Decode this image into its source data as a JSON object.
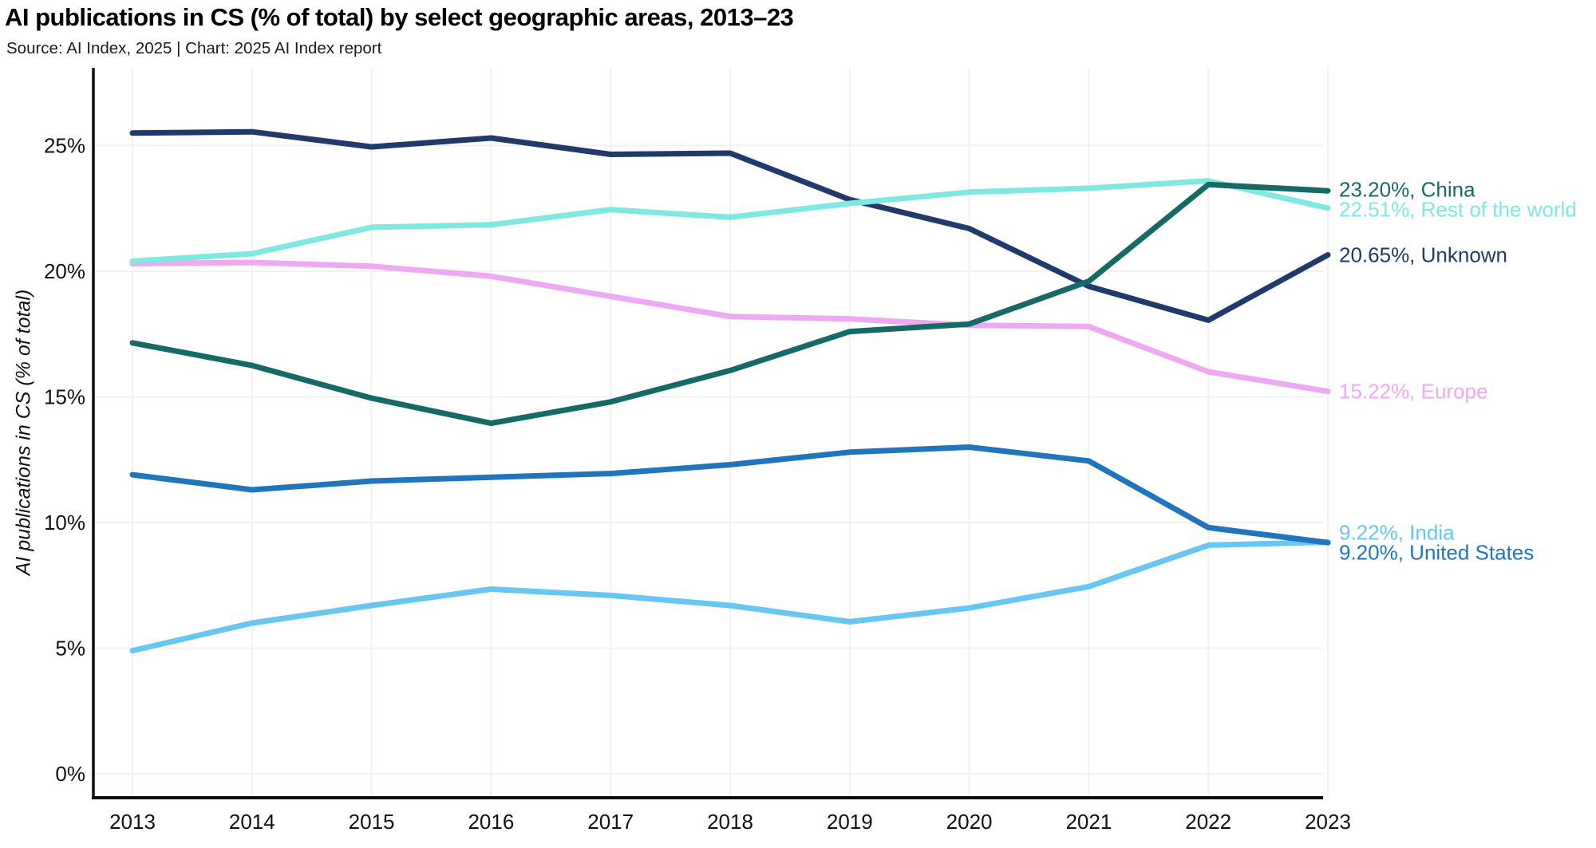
{
  "title": "AI publications in CS (% of total) by select geographic areas, 2013–23",
  "source_line": "Source: AI Index, 2025 | Chart: 2025 AI Index report",
  "chart_data": {
    "type": "line",
    "title": "AI publications in CS (% of total) by select geographic areas, 2013–23",
    "xlabel": "",
    "ylabel": "AI publications in CS (% of total)",
    "x": [
      2013,
      2014,
      2015,
      2016,
      2017,
      2018,
      2019,
      2020,
      2021,
      2022,
      2023
    ],
    "ylim": [
      0,
      27.5
    ],
    "yticks": [
      0,
      5,
      10,
      15,
      20,
      25
    ],
    "ytick_labels": [
      "0%",
      "5%",
      "10%",
      "15%",
      "20%",
      "25%"
    ],
    "grid": true,
    "legend_position": "right-end-labels",
    "series": [
      {
        "name": "Europe",
        "color": "#edaaf2",
        "end_label": "15.22%, Europe",
        "values": [
          20.3,
          20.35,
          20.2,
          19.8,
          19.0,
          18.2,
          18.1,
          17.85,
          17.8,
          16.0,
          15.22
        ]
      },
      {
        "name": "Unknown",
        "color": "#21396b",
        "end_label": "20.65%, Unknown",
        "values": [
          25.5,
          25.55,
          24.95,
          25.3,
          24.65,
          24.7,
          22.85,
          21.7,
          19.4,
          18.05,
          20.65
        ]
      },
      {
        "name": "Rest of the world",
        "color": "#7fe8e1",
        "end_label": "22.51%, Rest of the world",
        "values": [
          20.4,
          20.7,
          21.75,
          21.85,
          22.45,
          22.15,
          22.7,
          23.15,
          23.3,
          23.6,
          22.51
        ]
      },
      {
        "name": "India",
        "color": "#67c7f2",
        "end_label": "9.22%, India",
        "values": [
          4.9,
          6.0,
          6.7,
          7.35,
          7.1,
          6.7,
          6.05,
          6.6,
          7.45,
          9.1,
          9.22
        ]
      },
      {
        "name": "United States",
        "color": "#2175bd",
        "end_label": "9.20%, United States",
        "values": [
          11.9,
          11.3,
          11.65,
          11.8,
          11.95,
          12.3,
          12.8,
          13.0,
          12.45,
          9.8,
          9.2
        ]
      },
      {
        "name": "China",
        "color": "#166a66",
        "end_label": "23.20%, China",
        "values": [
          17.15,
          16.25,
          14.95,
          13.95,
          14.8,
          16.05,
          17.6,
          17.9,
          19.6,
          23.45,
          23.2
        ]
      }
    ]
  }
}
